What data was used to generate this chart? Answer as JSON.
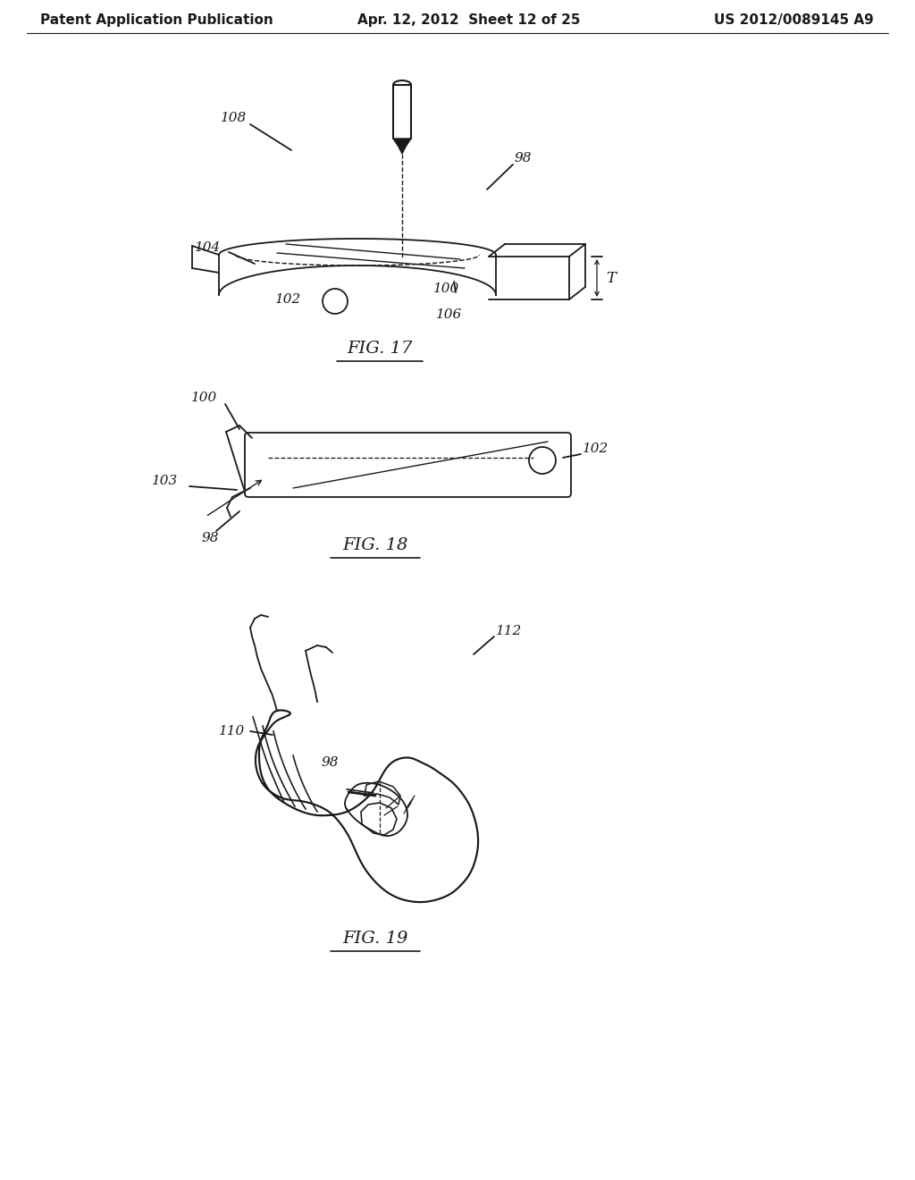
{
  "background_color": "#ffffff",
  "header_left": "Patent Application Publication",
  "header_center": "Apr. 12, 2012  Sheet 12 of 25",
  "header_right": "US 2012/0089145 A9",
  "header_fontsize": 11,
  "fig17_label": "FIG. 17",
  "fig18_label": "FIG. 18",
  "fig19_label": "FIG. 19",
  "line_color": "#1a1a1a",
  "label_fontsize": 11,
  "fig_label_fontsize": 14
}
